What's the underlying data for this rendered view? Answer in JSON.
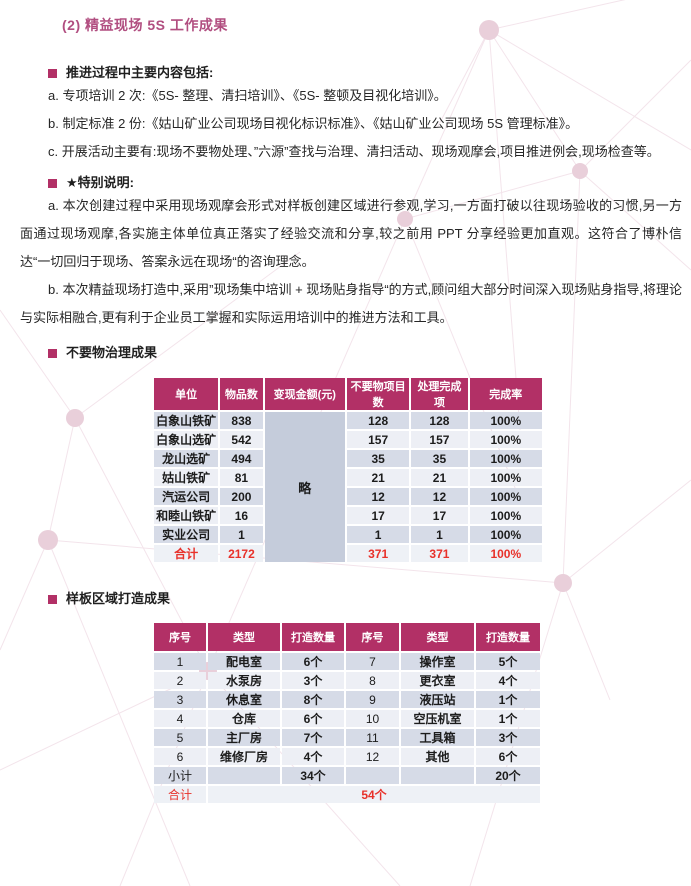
{
  "theme": {
    "accent": "#b23066",
    "title_color": "#b14e80",
    "total_red": "#e8312a",
    "row_dark": "#d6dbe7",
    "row_light": "#edeff5",
    "merged_bg": "#c5ccdb",
    "total_bg": "#eef1f6"
  },
  "page": {
    "title": "(2) 精益现场 5S 工作成果"
  },
  "sections": {
    "heading_main": "推进过程中主要内容包括:",
    "para_a": "a. 专项培训 2 次:《5S- 整理、清扫培训》、《5S- 整顿及目视化培训》。",
    "para_b": "b. 制定标准 2 份:《姑山矿业公司现场目视化标识标准》、《姑山矿业公司现场 5S 管理标准》。",
    "para_c": "c. 开展活动主要有:现场不要物处理、”六源”查找与治理、清扫活动、现场观摩会,项目推进例会,现场检查等。",
    "heading_special": "★特别说明:",
    "para_sa": "a. 本次创建过程中采用现场观摩会形式对样板创建区域进行参观,学习,一方面打破以往现场验收的习惯,另一方面通过现场观摩,各实施主体单位真正落实了经验交流和分享,较之前用 PPT 分享经验更加直观。这符合了博朴信达“一切回归于现场、答案永远在现场“的咨询理念。",
    "para_sb": "b. 本次精益现场打造中,采用”现场集中培训 + 现场贴身指导“的方式,顾问组大部分时间深入现场贴身指导,将理论与实际相融合,更有利于企业员工掌握和实际运用培训中的推进方法和工具。",
    "heading_unwanted": "不要物治理成果",
    "heading_sample": "样板区域打造成果"
  },
  "table1": {
    "headers": [
      "单位",
      "物品数",
      "变现金额(元)",
      "不要物项目数",
      "处理完成项",
      "完成率"
    ],
    "merged_note": "略",
    "rows": [
      [
        "白象山铁矿",
        "838",
        "128",
        "128",
        "100%"
      ],
      [
        "白象山选矿",
        "542",
        "157",
        "157",
        "100%"
      ],
      [
        "龙山选矿",
        "494",
        "35",
        "35",
        "100%"
      ],
      [
        "姑山铁矿",
        "81",
        "21",
        "21",
        "100%"
      ],
      [
        "汽运公司",
        "200",
        "12",
        "12",
        "100%"
      ],
      [
        "和睦山铁矿",
        "16",
        "17",
        "17",
        "100%"
      ],
      [
        "实业公司",
        "1",
        "1",
        "1",
        "100%"
      ]
    ],
    "total_row": [
      "合计",
      "2172",
      "371",
      "371",
      "100%"
    ]
  },
  "table2": {
    "headers": [
      "序号",
      "类型",
      "打造数量",
      "序号",
      "类型",
      "打造数量"
    ],
    "rows": [
      [
        "1",
        "配电室",
        "6个",
        "7",
        "操作室",
        "5个"
      ],
      [
        "2",
        "水泵房",
        "3个",
        "8",
        "更衣室",
        "4个"
      ],
      [
        "3",
        "休息室",
        "8个",
        "9",
        "液压站",
        "1个"
      ],
      [
        "4",
        "仓库",
        "6个",
        "10",
        "空压机室",
        "1个"
      ],
      [
        "5",
        "主厂房",
        "7个",
        "11",
        "工具箱",
        "3个"
      ],
      [
        "6",
        "维修厂房",
        "4个",
        "12",
        "其他",
        "6个"
      ]
    ],
    "subtotal_row": [
      "小计",
      "",
      "34个",
      "",
      "",
      "20个"
    ],
    "total_row": {
      "label": "合计",
      "value": "54个"
    }
  }
}
